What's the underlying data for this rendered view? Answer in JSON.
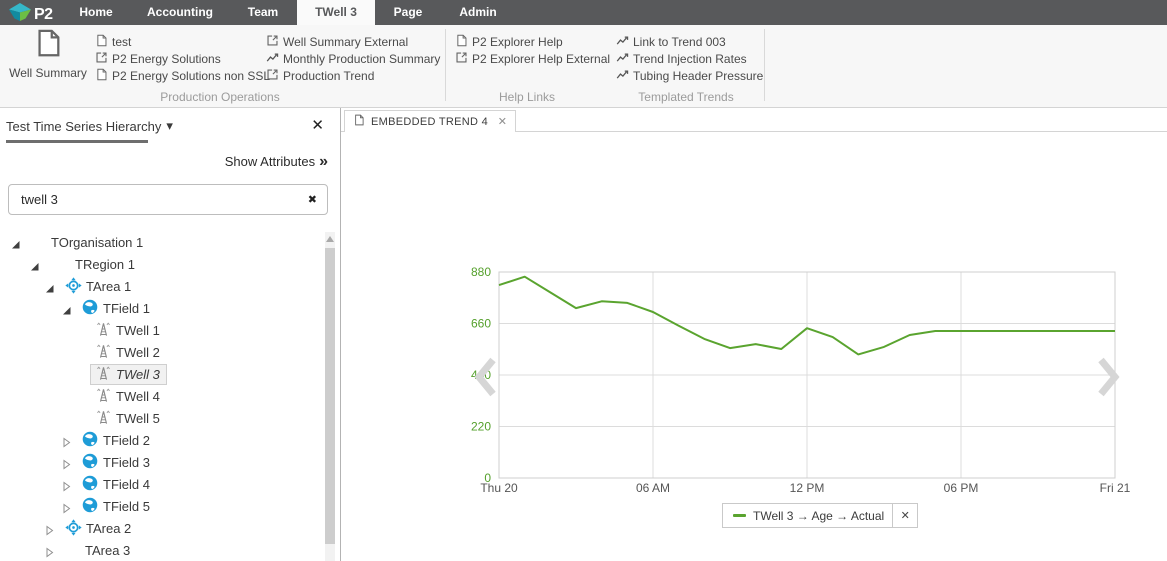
{
  "icons": {
    "close": "✕",
    "clear": "✖",
    "double_chevron": "»",
    "caret_down": "▾"
  },
  "topbar": {
    "logo_text": "P2",
    "items": [
      {
        "label": "Home",
        "active": false
      },
      {
        "label": "Accounting",
        "active": false
      },
      {
        "label": "Team",
        "active": false
      },
      {
        "label": "TWell 3",
        "active": true
      },
      {
        "label": "Page",
        "active": false
      },
      {
        "label": "Admin",
        "active": false
      }
    ]
  },
  "ribbon": {
    "big_button": {
      "label": "Well Summary",
      "icon": "document"
    },
    "columns": [
      {
        "items": [
          {
            "icon": "document",
            "label": "test"
          },
          {
            "icon": "external-link",
            "label": "P2 Energy Solutions"
          },
          {
            "icon": "document",
            "label": "P2 Energy Solutions non SSL"
          }
        ]
      },
      {
        "items": [
          {
            "icon": "external-link",
            "label": "Well Summary External"
          },
          {
            "icon": "trend",
            "label": "Monthly Production Summary"
          },
          {
            "icon": "external-link",
            "label": "Production Trend"
          }
        ]
      },
      {
        "items": [
          {
            "icon": "document",
            "label": "P2 Explorer Help"
          },
          {
            "icon": "external-link",
            "label": "P2 Explorer Help External"
          }
        ]
      },
      {
        "items": [
          {
            "icon": "trend",
            "label": "Link to Trend 003"
          },
          {
            "icon": "trend",
            "label": "Trend Injection Rates"
          },
          {
            "icon": "trend",
            "label": "Tubing Header Pressure"
          }
        ]
      }
    ],
    "group_labels": [
      "Production Operations",
      "Help Links",
      "Templated Trends"
    ]
  },
  "sidebar": {
    "title": "Test Time Series Hierarchy",
    "show_attributes_label": "Show Attributes",
    "search_value": "twell 3",
    "tree": [
      {
        "label": "TOrganisation 1",
        "level": 0,
        "icon": null,
        "expander": "expanded",
        "selected": false
      },
      {
        "label": "TRegion 1",
        "level": 1,
        "icon": null,
        "expander": "expanded",
        "selected": false
      },
      {
        "label": "TArea 1",
        "level": 2,
        "icon": "area",
        "expander": "expanded",
        "selected": false
      },
      {
        "label": "TField 1",
        "level": 3,
        "icon": "field",
        "expander": "expanded",
        "selected": false
      },
      {
        "label": "TWell 1",
        "level": 4,
        "icon": "well",
        "expander": null,
        "selected": false
      },
      {
        "label": "TWell 2",
        "level": 4,
        "icon": "well",
        "expander": null,
        "selected": false
      },
      {
        "label": "TWell 3",
        "level": 4,
        "icon": "well",
        "expander": null,
        "selected": true
      },
      {
        "label": "TWell 4",
        "level": 4,
        "icon": "well",
        "expander": null,
        "selected": false
      },
      {
        "label": "TWell 5",
        "level": 4,
        "icon": "well",
        "expander": null,
        "selected": false
      },
      {
        "label": "TField 2",
        "level": 3,
        "icon": "field",
        "expander": "collapsed",
        "selected": false
      },
      {
        "label": "TField 3",
        "level": 3,
        "icon": "field",
        "expander": "collapsed",
        "selected": false
      },
      {
        "label": "TField 4",
        "level": 3,
        "icon": "field",
        "expander": "collapsed",
        "selected": false
      },
      {
        "label": "TField 5",
        "level": 3,
        "icon": "field",
        "expander": "collapsed",
        "selected": false
      },
      {
        "label": "TArea 2",
        "level": 2,
        "icon": "area",
        "expander": "collapsed",
        "selected": false
      },
      {
        "label": "TArea 3",
        "level": 2,
        "icon": null,
        "expander": "collapsed",
        "selected": false
      }
    ]
  },
  "main": {
    "tab_label": "EMBEDDED TREND 4",
    "legend_label": "TWell 3 → Age → Actual"
  },
  "chart_data": {
    "type": "line",
    "title": "",
    "xlabel": "",
    "ylabel": "",
    "x_ticks": [
      "Thu 20",
      "06 AM",
      "12 PM",
      "06 PM",
      "Fri 21"
    ],
    "x_range_hours": [
      0,
      24
    ],
    "y_ticks": [
      0,
      220,
      440,
      660,
      880
    ],
    "ylim": [
      0,
      880
    ],
    "grid": true,
    "legend_position": "bottom-center",
    "series": [
      {
        "name": "TWell 3 → Age → Actual",
        "color": "#5aa42f",
        "x_hours": [
          0,
          1,
          2,
          3,
          4,
          5,
          6,
          7,
          8,
          9,
          10,
          11,
          12,
          13,
          14,
          15,
          16,
          17,
          18,
          19,
          20,
          21,
          22,
          23,
          24
        ],
        "values": [
          824,
          860,
          793,
          726,
          755,
          748,
          709,
          650,
          594,
          555,
          572,
          551,
          640,
          602,
          528,
          560,
          611,
          628,
          628,
          628,
          628,
          628,
          628,
          628,
          628
        ]
      }
    ]
  }
}
